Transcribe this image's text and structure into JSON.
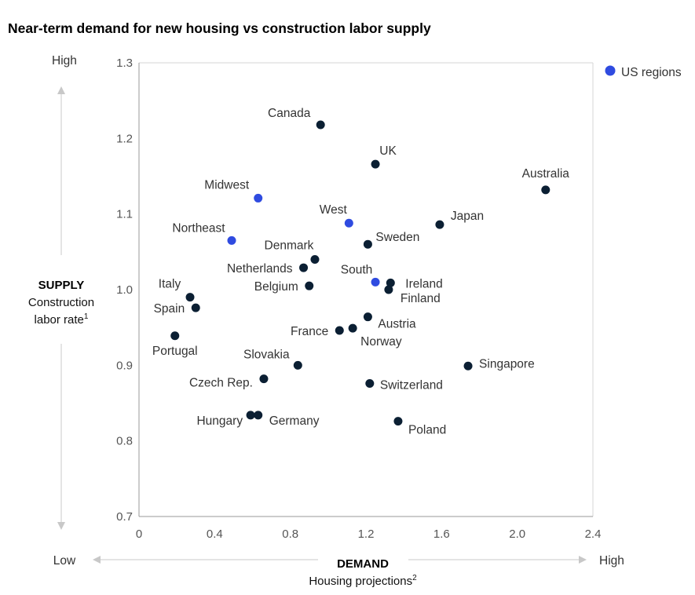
{
  "chart_data": {
    "type": "scatter",
    "title": "Near-term demand for new housing vs construction labor supply",
    "xlim": [
      0,
      2.4
    ],
    "ylim": [
      0.7,
      1.3
    ],
    "xticks": [
      "0",
      "0.4",
      "0.8",
      "1.2",
      "1.6",
      "2.0",
      "2.4"
    ],
    "yticks": [
      "0.7",
      "0.8",
      "0.9",
      "1.0",
      "1.1",
      "1.2",
      "1.3"
    ],
    "x_axis": {
      "bold": "DEMAND",
      "label": "Housing projections",
      "note": "2",
      "low": "Low",
      "high": "High"
    },
    "y_axis": {
      "bold": "SUPPLY",
      "label_line1": "Construction",
      "label_line2": "labor rate",
      "note": "1",
      "low": "Low",
      "high": "High"
    },
    "legend": {
      "label": "US regions",
      "position": "top-right"
    },
    "colors": {
      "country": "#0b1f33",
      "us_region": "#2f4be0"
    },
    "points": [
      {
        "label": "Canada",
        "x": 0.96,
        "y": 1.218,
        "group": "country",
        "lx": -40,
        "ly": -10,
        "anchor": "middle"
      },
      {
        "label": "UK",
        "x": 1.25,
        "y": 1.166,
        "group": "country",
        "lx": 16,
        "ly": -12,
        "anchor": "middle"
      },
      {
        "label": "Australia",
        "x": 2.15,
        "y": 1.132,
        "group": "country",
        "lx": 0,
        "ly": -16,
        "anchor": "middle"
      },
      {
        "label": "Midwest",
        "x": 0.63,
        "y": 1.121,
        "group": "us_region",
        "lx": -40,
        "ly": -12,
        "anchor": "middle"
      },
      {
        "label": "West",
        "x": 1.11,
        "y": 1.088,
        "group": "us_region",
        "lx": -20,
        "ly": -12,
        "anchor": "middle"
      },
      {
        "label": "Japan",
        "x": 1.59,
        "y": 1.086,
        "group": "country",
        "lx": 14,
        "ly": -6,
        "anchor": "start"
      },
      {
        "label": "Northeast",
        "x": 0.49,
        "y": 1.065,
        "group": "us_region",
        "lx": -42,
        "ly": -11,
        "anchor": "middle"
      },
      {
        "label": "Sweden",
        "x": 1.21,
        "y": 1.06,
        "group": "country",
        "lx": 10,
        "ly": -4,
        "anchor": "start"
      },
      {
        "label": "Denmark",
        "x": 0.93,
        "y": 1.04,
        "group": "country",
        "lx": -33,
        "ly": -13,
        "anchor": "middle"
      },
      {
        "label": "Netherlands",
        "x": 0.87,
        "y": 1.029,
        "group": "country",
        "lx": -14,
        "ly": 6,
        "anchor": "end"
      },
      {
        "label": "South",
        "x": 1.25,
        "y": 1.01,
        "group": "us_region",
        "lx": -24,
        "ly": -11,
        "anchor": "middle"
      },
      {
        "label": "Ireland",
        "x": 1.33,
        "y": 1.009,
        "group": "country",
        "lx": 19,
        "ly": 6,
        "anchor": "start"
      },
      {
        "label": "Belgium",
        "x": 0.9,
        "y": 1.005,
        "group": "country",
        "lx": -14,
        "ly": 6,
        "anchor": "end"
      },
      {
        "label": "Finland",
        "x": 1.32,
        "y": 1.0,
        "group": "country",
        "lx": 15,
        "ly": 16,
        "anchor": "start"
      },
      {
        "label": "Italy",
        "x": 0.27,
        "y": 0.99,
        "group": "country",
        "lx": -26,
        "ly": -12,
        "anchor": "middle"
      },
      {
        "label": "Spain",
        "x": 0.3,
        "y": 0.976,
        "group": "country",
        "lx": -14,
        "ly": 6,
        "anchor": "end"
      },
      {
        "label": "Austria",
        "x": 1.21,
        "y": 0.964,
        "group": "country",
        "lx": 13,
        "ly": 14,
        "anchor": "start"
      },
      {
        "label": "Norway",
        "x": 1.13,
        "y": 0.949,
        "group": "country",
        "lx": 10,
        "ly": 22,
        "anchor": "start"
      },
      {
        "label": "France",
        "x": 1.06,
        "y": 0.946,
        "group": "country",
        "lx": -14,
        "ly": 6,
        "anchor": "end"
      },
      {
        "label": "Portugal",
        "x": 0.19,
        "y": 0.939,
        "group": "country",
        "lx": 0,
        "ly": 24,
        "anchor": "middle"
      },
      {
        "label": "Slovakia",
        "x": 0.84,
        "y": 0.9,
        "group": "country",
        "lx": -40,
        "ly": -9,
        "anchor": "middle"
      },
      {
        "label": "Singapore",
        "x": 1.74,
        "y": 0.899,
        "group": "country",
        "lx": 14,
        "ly": 2,
        "anchor": "start"
      },
      {
        "label": "Czech Rep.",
        "x": 0.66,
        "y": 0.882,
        "group": "country",
        "lx": -14,
        "ly": 10,
        "anchor": "end"
      },
      {
        "label": "Switzerland",
        "x": 1.22,
        "y": 0.876,
        "group": "country",
        "lx": 13,
        "ly": 7,
        "anchor": "start"
      },
      {
        "label": "Hungary",
        "x": 0.59,
        "y": 0.834,
        "group": "country",
        "lx": -10,
        "ly": 12,
        "anchor": "end"
      },
      {
        "label": "Germany",
        "x": 0.63,
        "y": 0.834,
        "group": "country",
        "lx": 14,
        "ly": 12,
        "anchor": "start"
      },
      {
        "label": "Poland",
        "x": 1.37,
        "y": 0.826,
        "group": "country",
        "lx": 13,
        "ly": 16,
        "anchor": "start"
      }
    ]
  }
}
